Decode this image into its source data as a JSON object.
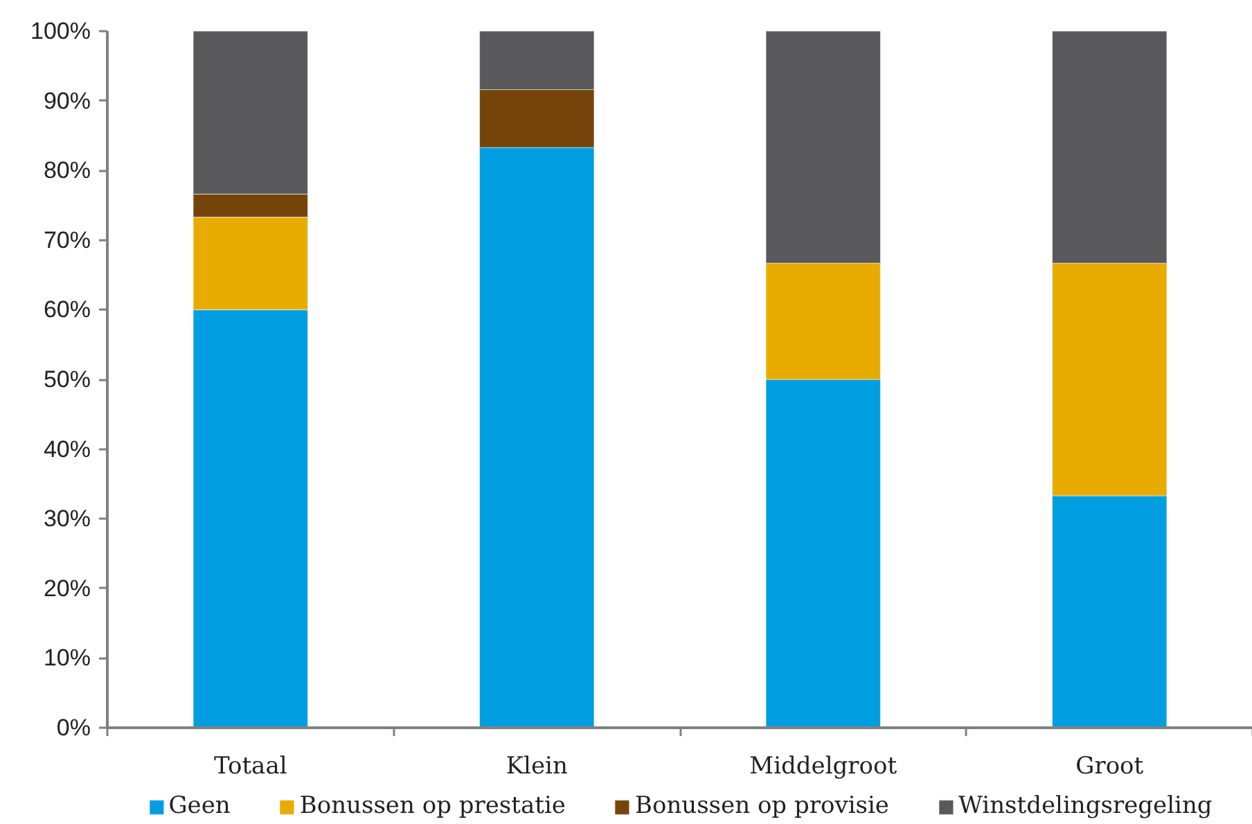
{
  "chart_data": {
    "type": "bar",
    "stacked": true,
    "categories": [
      "Totaal",
      "Klein",
      "Middelgroot",
      "Groot"
    ],
    "series": [
      {
        "name": "Geen",
        "color": "#009ee0",
        "values": [
          60,
          83.3,
          50,
          33.3
        ]
      },
      {
        "name": "Bonussen op prestatie",
        "color": "#e8ac00",
        "values": [
          13.3,
          null,
          16.7,
          33.4
        ]
      },
      {
        "name": "Bonussen op provisie",
        "color": "#74440a",
        "values": [
          3.3,
          8.3,
          null,
          null
        ]
      },
      {
        "name": "Winstdelingsregeling",
        "color": "#59595b",
        "values": [
          23.4,
          8.4,
          33.3,
          33.3
        ]
      }
    ],
    "ylim": [
      0,
      100
    ],
    "yticks": [
      {
        "value": 0,
        "label": "0%"
      },
      {
        "value": 10,
        "label": "10%"
      },
      {
        "value": 20,
        "label": "20%"
      },
      {
        "value": 30,
        "label": "30%"
      },
      {
        "value": 40,
        "label": "40%"
      },
      {
        "value": 50,
        "label": "50%"
      },
      {
        "value": 60,
        "label": "60%"
      },
      {
        "value": 70,
        "label": "70%"
      },
      {
        "value": 80,
        "label": "80%"
      },
      {
        "value": 90,
        "label": "90%"
      },
      {
        "value": 100,
        "label": "100%"
      }
    ],
    "legend": "bottom"
  }
}
